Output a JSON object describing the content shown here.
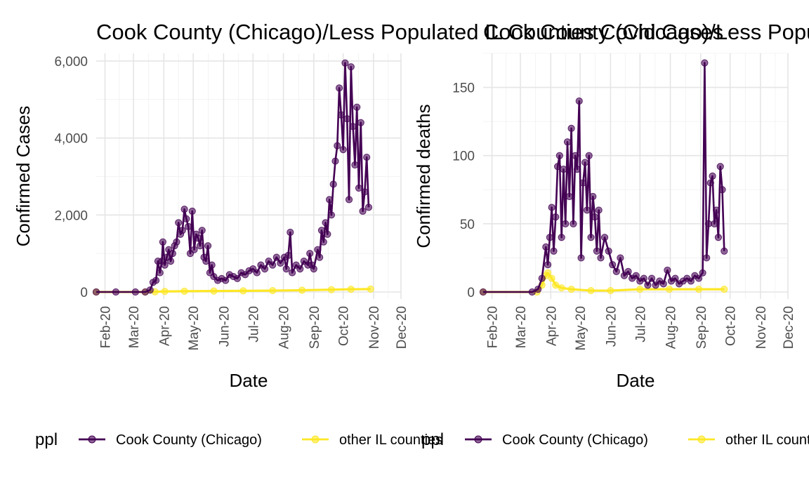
{
  "chart_data": [
    {
      "type": "line",
      "title": "Cook County (Chicago)/Less Populated IL Counties Covid Cases",
      "xlabel": "Date",
      "ylabel": "Confirmed Cases",
      "ylim": [
        0,
        6200
      ],
      "y_ticks": [
        0,
        2000,
        4000,
        6000
      ],
      "y_tick_labels": [
        "0",
        "2,000",
        "4,000",
        "6,000"
      ],
      "x_tick_labels": [
        "Feb-20",
        "Mar-20",
        "Apr-20",
        "May-20",
        "Jun-20",
        "Jul-20",
        "Aug-20",
        "Sep-20",
        "Oct-20",
        "Nov-20",
        "Dec-20"
      ],
      "x_range_days": [
        0,
        311
      ],
      "month_start_days": [
        9,
        38,
        69,
        99,
        130,
        160,
        191,
        222,
        252,
        283,
        313
      ],
      "series": [
        {
          "name": "Cook County (Chicago)",
          "color": "#440154",
          "points": [
            [
              0,
              0
            ],
            [
              20,
              0
            ],
            [
              40,
              0
            ],
            [
              50,
              0
            ],
            [
              55,
              50
            ],
            [
              58,
              250
            ],
            [
              61,
              300
            ],
            [
              63,
              800
            ],
            [
              65,
              500
            ],
            [
              67,
              800
            ],
            [
              68,
              1300
            ],
            [
              70,
              700
            ],
            [
              72,
              900
            ],
            [
              74,
              1100
            ],
            [
              76,
              800
            ],
            [
              78,
              1000
            ],
            [
              80,
              1200
            ],
            [
              82,
              1300
            ],
            [
              84,
              1800
            ],
            [
              86,
              1500
            ],
            [
              88,
              1600
            ],
            [
              90,
              2150
            ],
            [
              92,
              1900
            ],
            [
              94,
              1700
            ],
            [
              96,
              1000
            ],
            [
              98,
              2100
            ],
            [
              100,
              1100
            ],
            [
              102,
              1500
            ],
            [
              104,
              1400
            ],
            [
              106,
              1200
            ],
            [
              108,
              1600
            ],
            [
              110,
              900
            ],
            [
              112,
              800
            ],
            [
              114,
              1200
            ],
            [
              116,
              500
            ],
            [
              118,
              700
            ],
            [
              120,
              400
            ],
            [
              124,
              300
            ],
            [
              128,
              350
            ],
            [
              132,
              300
            ],
            [
              136,
              450
            ],
            [
              140,
              400
            ],
            [
              144,
              350
            ],
            [
              148,
              500
            ],
            [
              152,
              450
            ],
            [
              156,
              550
            ],
            [
              160,
              600
            ],
            [
              164,
              500
            ],
            [
              168,
              700
            ],
            [
              172,
              600
            ],
            [
              176,
              800
            ],
            [
              180,
              700
            ],
            [
              184,
              900
            ],
            [
              188,
              750
            ],
            [
              192,
              900
            ],
            [
              194,
              600
            ],
            [
              196,
              950
            ],
            [
              198,
              1550
            ],
            [
              200,
              500
            ],
            [
              204,
              700
            ],
            [
              208,
              600
            ],
            [
              212,
              800
            ],
            [
              216,
              700
            ],
            [
              218,
              1000
            ],
            [
              220,
              700
            ],
            [
              222,
              600
            ],
            [
              226,
              1100
            ],
            [
              228,
              900
            ],
            [
              230,
              1600
            ],
            [
              232,
              1300
            ],
            [
              234,
              1800
            ],
            [
              236,
              1500
            ],
            [
              238,
              2400
            ],
            [
              240,
              2000
            ],
            [
              242,
              2800
            ],
            [
              244,
              3400
            ],
            [
              246,
              3800
            ],
            [
              248,
              5300
            ],
            [
              250,
              4600
            ],
            [
              252,
              3700
            ],
            [
              254,
              5950
            ],
            [
              256,
              4500
            ],
            [
              258,
              2400
            ],
            [
              260,
              5850
            ],
            [
              262,
              4300
            ],
            [
              264,
              3300
            ],
            [
              266,
              4800
            ],
            [
              268,
              2700
            ],
            [
              270,
              4400
            ],
            [
              272,
              2100
            ],
            [
              274,
              2600
            ],
            [
              276,
              3500
            ],
            [
              278,
              2200
            ]
          ]
        },
        {
          "name": "other IL counties",
          "color": "#fde725",
          "points": [
            [
              0,
              0
            ],
            [
              50,
              0
            ],
            [
              60,
              5
            ],
            [
              70,
              15
            ],
            [
              90,
              20
            ],
            [
              120,
              25
            ],
            [
              150,
              30
            ],
            [
              180,
              35
            ],
            [
              210,
              45
            ],
            [
              240,
              60
            ],
            [
              260,
              70
            ],
            [
              280,
              75
            ]
          ]
        }
      ]
    },
    {
      "type": "line",
      "title": "Cook County (Chicago)/Less Populated IL Counties Covid Deaths",
      "xlabel": "Date",
      "ylabel": "Confirmed deaths",
      "ylim": [
        0,
        175
      ],
      "y_ticks": [
        0,
        50,
        100,
        150
      ],
      "y_tick_labels": [
        "0",
        "50",
        "100",
        "150"
      ],
      "x_tick_labels": [
        "Feb-20",
        "Mar-20",
        "Apr-20",
        "May-20",
        "Jun-20",
        "Jul-20",
        "Aug-20",
        "Sep-20",
        "Oct-20",
        "Nov-20",
        "Dec-20"
      ],
      "x_range_days": [
        0,
        311
      ],
      "month_start_days": [
        9,
        38,
        69,
        99,
        130,
        160,
        191,
        222,
        252,
        283,
        313
      ],
      "series": [
        {
          "name": "Cook County (Chicago)",
          "color": "#440154",
          "points": [
            [
              0,
              0
            ],
            [
              50,
              0
            ],
            [
              56,
              2
            ],
            [
              60,
              10
            ],
            [
              64,
              33
            ],
            [
              66,
              20
            ],
            [
              68,
              40
            ],
            [
              70,
              62
            ],
            [
              72,
              30
            ],
            [
              74,
              55
            ],
            [
              76,
              92
            ],
            [
              78,
              100
            ],
            [
              80,
              40
            ],
            [
              82,
              90
            ],
            [
              84,
              50
            ],
            [
              86,
              110
            ],
            [
              88,
              70
            ],
            [
              90,
              120
            ],
            [
              92,
              50
            ],
            [
              94,
              100
            ],
            [
              96,
              90
            ],
            [
              98,
              140
            ],
            [
              100,
              25
            ],
            [
              102,
              80
            ],
            [
              104,
              95
            ],
            [
              106,
              60
            ],
            [
              108,
              100
            ],
            [
              110,
              40
            ],
            [
              112,
              70
            ],
            [
              114,
              55
            ],
            [
              116,
              30
            ],
            [
              118,
              60
            ],
            [
              120,
              25
            ],
            [
              124,
              40
            ],
            [
              128,
              30
            ],
            [
              132,
              20
            ],
            [
              136,
              15
            ],
            [
              140,
              25
            ],
            [
              144,
              12
            ],
            [
              148,
              15
            ],
            [
              152,
              10
            ],
            [
              156,
              12
            ],
            [
              160,
              8
            ],
            [
              164,
              10
            ],
            [
              168,
              5
            ],
            [
              172,
              10
            ],
            [
              176,
              5
            ],
            [
              180,
              8
            ],
            [
              184,
              6
            ],
            [
              188,
              16
            ],
            [
              192,
              8
            ],
            [
              196,
              10
            ],
            [
              200,
              6
            ],
            [
              204,
              8
            ],
            [
              208,
              10
            ],
            [
              212,
              8
            ],
            [
              216,
              12
            ],
            [
              220,
              10
            ],
            [
              224,
              14
            ],
            [
              226,
              168
            ],
            [
              228,
              25
            ],
            [
              230,
              50
            ],
            [
              232,
              80
            ],
            [
              234,
              85
            ],
            [
              236,
              50
            ],
            [
              238,
              60
            ],
            [
              240,
              40
            ],
            [
              242,
              92
            ],
            [
              244,
              75
            ],
            [
              246,
              30
            ]
          ]
        },
        {
          "name": "other IL counties",
          "color": "#fde725",
          "points": [
            [
              0,
              0
            ],
            [
              55,
              0
            ],
            [
              60,
              5
            ],
            [
              64,
              12
            ],
            [
              66,
              14
            ],
            [
              70,
              10
            ],
            [
              74,
              5
            ],
            [
              80,
              3
            ],
            [
              90,
              2
            ],
            [
              110,
              1
            ],
            [
              130,
              1
            ],
            [
              160,
              2
            ],
            [
              190,
              2
            ],
            [
              220,
              2
            ],
            [
              246,
              2
            ]
          ]
        }
      ]
    }
  ],
  "legend": {
    "title": "ppl",
    "items": [
      {
        "label": "Cook County (Chicago)",
        "color": "#440154"
      },
      {
        "label": "other IL counties",
        "color": "#fde725"
      }
    ]
  }
}
